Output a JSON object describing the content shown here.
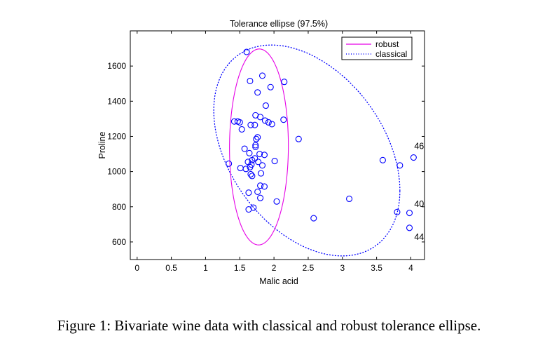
{
  "caption": "Figure 1: Bivariate wine data with classical and robust tolerance ellipse.",
  "chart_data": {
    "type": "scatter",
    "title": "Tolerance ellipse (97.5%)",
    "xlabel": "Malic acid",
    "ylabel": "Proline",
    "xlim": [
      -0.1,
      4.2
    ],
    "ylim": [
      500,
      1800
    ],
    "xticks": [
      "0",
      "0.5",
      "1",
      "1.5",
      "2",
      "2.5",
      "3",
      "3.5",
      "4"
    ],
    "yticks": [
      "600",
      "800",
      "1000",
      "1200",
      "1400",
      "1600"
    ],
    "grid": false,
    "legend_position": "top-right",
    "legend": [
      {
        "label": "robust",
        "style": "solid",
        "color": "#e600e6"
      },
      {
        "label": "classical",
        "style": "dotted",
        "color": "#0000ff"
      }
    ],
    "colors": {
      "points": "#0000ff",
      "robust": "#e600e6",
      "classical": "#0000ff"
    },
    "robust_ellipse": {
      "center": [
        1.78,
        1140
      ],
      "x_range": [
        1.35,
        2.21
      ],
      "y_range": [
        583,
        1697
      ],
      "tilt": 0.012
    },
    "classical_ellipse": {
      "center": [
        2.48,
        1120
      ],
      "x_range": [
        1.12,
        3.84
      ],
      "y_range": [
        513,
        1712
      ],
      "tilt": -0.38
    },
    "points": [
      {
        "x": 1.6,
        "y": 1680
      },
      {
        "x": 1.65,
        "y": 1515
      },
      {
        "x": 1.83,
        "y": 1545
      },
      {
        "x": 2.15,
        "y": 1510
      },
      {
        "x": 1.95,
        "y": 1480
      },
      {
        "x": 1.76,
        "y": 1450
      },
      {
        "x": 1.88,
        "y": 1375
      },
      {
        "x": 1.73,
        "y": 1320
      },
      {
        "x": 1.8,
        "y": 1310
      },
      {
        "x": 1.87,
        "y": 1290
      },
      {
        "x": 1.92,
        "y": 1280
      },
      {
        "x": 1.97,
        "y": 1270
      },
      {
        "x": 1.72,
        "y": 1265
      },
      {
        "x": 1.66,
        "y": 1265
      },
      {
        "x": 2.14,
        "y": 1295
      },
      {
        "x": 1.42,
        "y": 1285
      },
      {
        "x": 1.47,
        "y": 1285
      },
      {
        "x": 1.5,
        "y": 1280
      },
      {
        "x": 1.53,
        "y": 1240
      },
      {
        "x": 1.76,
        "y": 1195
      },
      {
        "x": 1.74,
        "y": 1185
      },
      {
        "x": 2.36,
        "y": 1185
      },
      {
        "x": 1.73,
        "y": 1150
      },
      {
        "x": 1.73,
        "y": 1140
      },
      {
        "x": 1.57,
        "y": 1130
      },
      {
        "x": 1.64,
        "y": 1105
      },
      {
        "x": 1.79,
        "y": 1100
      },
      {
        "x": 1.86,
        "y": 1095
      },
      {
        "x": 1.72,
        "y": 1075
      },
      {
        "x": 1.68,
        "y": 1065
      },
      {
        "x": 1.62,
        "y": 1055
      },
      {
        "x": 1.77,
        "y": 1055
      },
      {
        "x": 2.01,
        "y": 1060
      },
      {
        "x": 1.83,
        "y": 1035
      },
      {
        "x": 1.67,
        "y": 1040
      },
      {
        "x": 1.65,
        "y": 1025
      },
      {
        "x": 1.51,
        "y": 1020
      },
      {
        "x": 1.59,
        "y": 1015
      },
      {
        "x": 1.34,
        "y": 1045
      },
      {
        "x": 1.66,
        "y": 985
      },
      {
        "x": 1.81,
        "y": 990
      },
      {
        "x": 1.68,
        "y": 975
      },
      {
        "x": 1.8,
        "y": 920
      },
      {
        "x": 1.86,
        "y": 915
      },
      {
        "x": 1.63,
        "y": 880
      },
      {
        "x": 1.76,
        "y": 885
      },
      {
        "x": 1.8,
        "y": 850
      },
      {
        "x": 2.04,
        "y": 830
      },
      {
        "x": 1.7,
        "y": 795
      },
      {
        "x": 1.63,
        "y": 785
      },
      {
        "x": 2.58,
        "y": 735
      },
      {
        "x": 3.1,
        "y": 845
      },
      {
        "x": 3.59,
        "y": 1065
      },
      {
        "x": 3.84,
        "y": 1035
      },
      {
        "x": 4.04,
        "y": 1080
      },
      {
        "x": 3.8,
        "y": 770
      },
      {
        "x": 3.98,
        "y": 765
      },
      {
        "x": 3.98,
        "y": 680
      }
    ],
    "annotations": [
      {
        "text": "46",
        "x": 4.05,
        "y": 1145
      },
      {
        "text": "40",
        "x": 4.05,
        "y": 815
      },
      {
        "text": "44",
        "x": 4.05,
        "y": 628
      }
    ]
  }
}
